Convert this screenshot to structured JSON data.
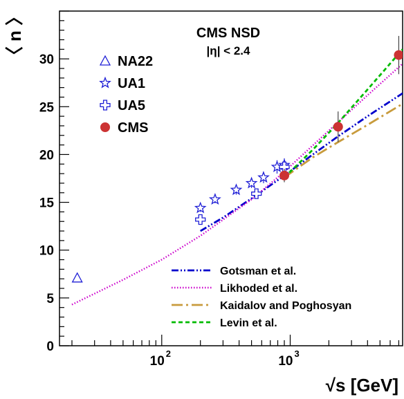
{
  "chart_data": {
    "type": "scatter",
    "title": "CMS NSD",
    "subtitle": "|η| < 2.4",
    "xlabel": "√s [GeV]",
    "ylabel": "〈 n 〉",
    "xscale": "log",
    "xlim": [
      16,
      7500
    ],
    "ylim": [
      0,
      35
    ],
    "yticks": [
      0,
      5,
      10,
      15,
      20,
      25,
      30
    ],
    "xticks": [
      {
        "value": 100,
        "base": "10",
        "exp": "2"
      },
      {
        "value": 1000,
        "base": "10",
        "exp": "3"
      }
    ],
    "grid": false,
    "legend_position": "top-left and bottom-right",
    "series": [
      {
        "name": "NA22",
        "kind": "points",
        "marker": "triangle-open",
        "color": "#1f1fd6",
        "x": [
          22
        ],
        "y": [
          7.1
        ],
        "err": [
          0
        ]
      },
      {
        "name": "UA1",
        "kind": "points",
        "marker": "star-open",
        "color": "#1f1fd6",
        "x": [
          200,
          260,
          380,
          500,
          620,
          790,
          900
        ],
        "y": [
          14.4,
          15.3,
          16.3,
          17.0,
          17.6,
          18.7,
          18.9
        ],
        "err": [
          0.4,
          0.4,
          0.5,
          0.5,
          0.6,
          0.7,
          0.7
        ]
      },
      {
        "name": "UA5",
        "kind": "points",
        "marker": "cross-open",
        "color": "#1f1fd6",
        "x": [
          200,
          546,
          900
        ],
        "y": [
          13.2,
          15.9,
          18.7
        ],
        "err": [
          0.4,
          0.5,
          0.5
        ]
      },
      {
        "name": "CMS",
        "kind": "points",
        "marker": "circle-filled",
        "color": "#cc3333",
        "x": [
          900,
          2360,
          7000
        ],
        "y": [
          17.8,
          22.9,
          30.4
        ],
        "err": [
          0.7,
          1.6,
          2.0
        ]
      },
      {
        "name": "Gotsman et al.",
        "kind": "line",
        "style": "dash-dot-dot",
        "color": "#0000cc",
        "x": [
          200,
          300,
          500,
          900,
          1500,
          2360,
          4000,
          7500
        ],
        "y": [
          12.0,
          13.4,
          15.4,
          17.8,
          20.0,
          21.9,
          24.0,
          26.4
        ]
      },
      {
        "name": "Likhoded et al.",
        "kind": "line",
        "style": "dotted",
        "color": "#cc00cc",
        "x": [
          20,
          50,
          100,
          200,
          500,
          900,
          2000,
          4000,
          7500
        ],
        "y": [
          4.3,
          6.9,
          9.0,
          11.5,
          15.3,
          18.2,
          22.5,
          26.2,
          29.5
        ]
      },
      {
        "name": "Kaidalov and Poghosyan",
        "kind": "line",
        "style": "long-dash-dot",
        "color": "#c89b3c",
        "x": [
          900,
          1500,
          2360,
          4000,
          7500
        ],
        "y": [
          17.6,
          19.7,
          21.3,
          23.1,
          25.3
        ]
      },
      {
        "name": "Levin et al.",
        "kind": "line",
        "style": "dashed",
        "color": "#00bb00",
        "x": [
          900,
          1500,
          2360,
          4000,
          7500
        ],
        "y": [
          17.6,
          20.5,
          23.3,
          26.8,
          31.0
        ]
      }
    ]
  }
}
